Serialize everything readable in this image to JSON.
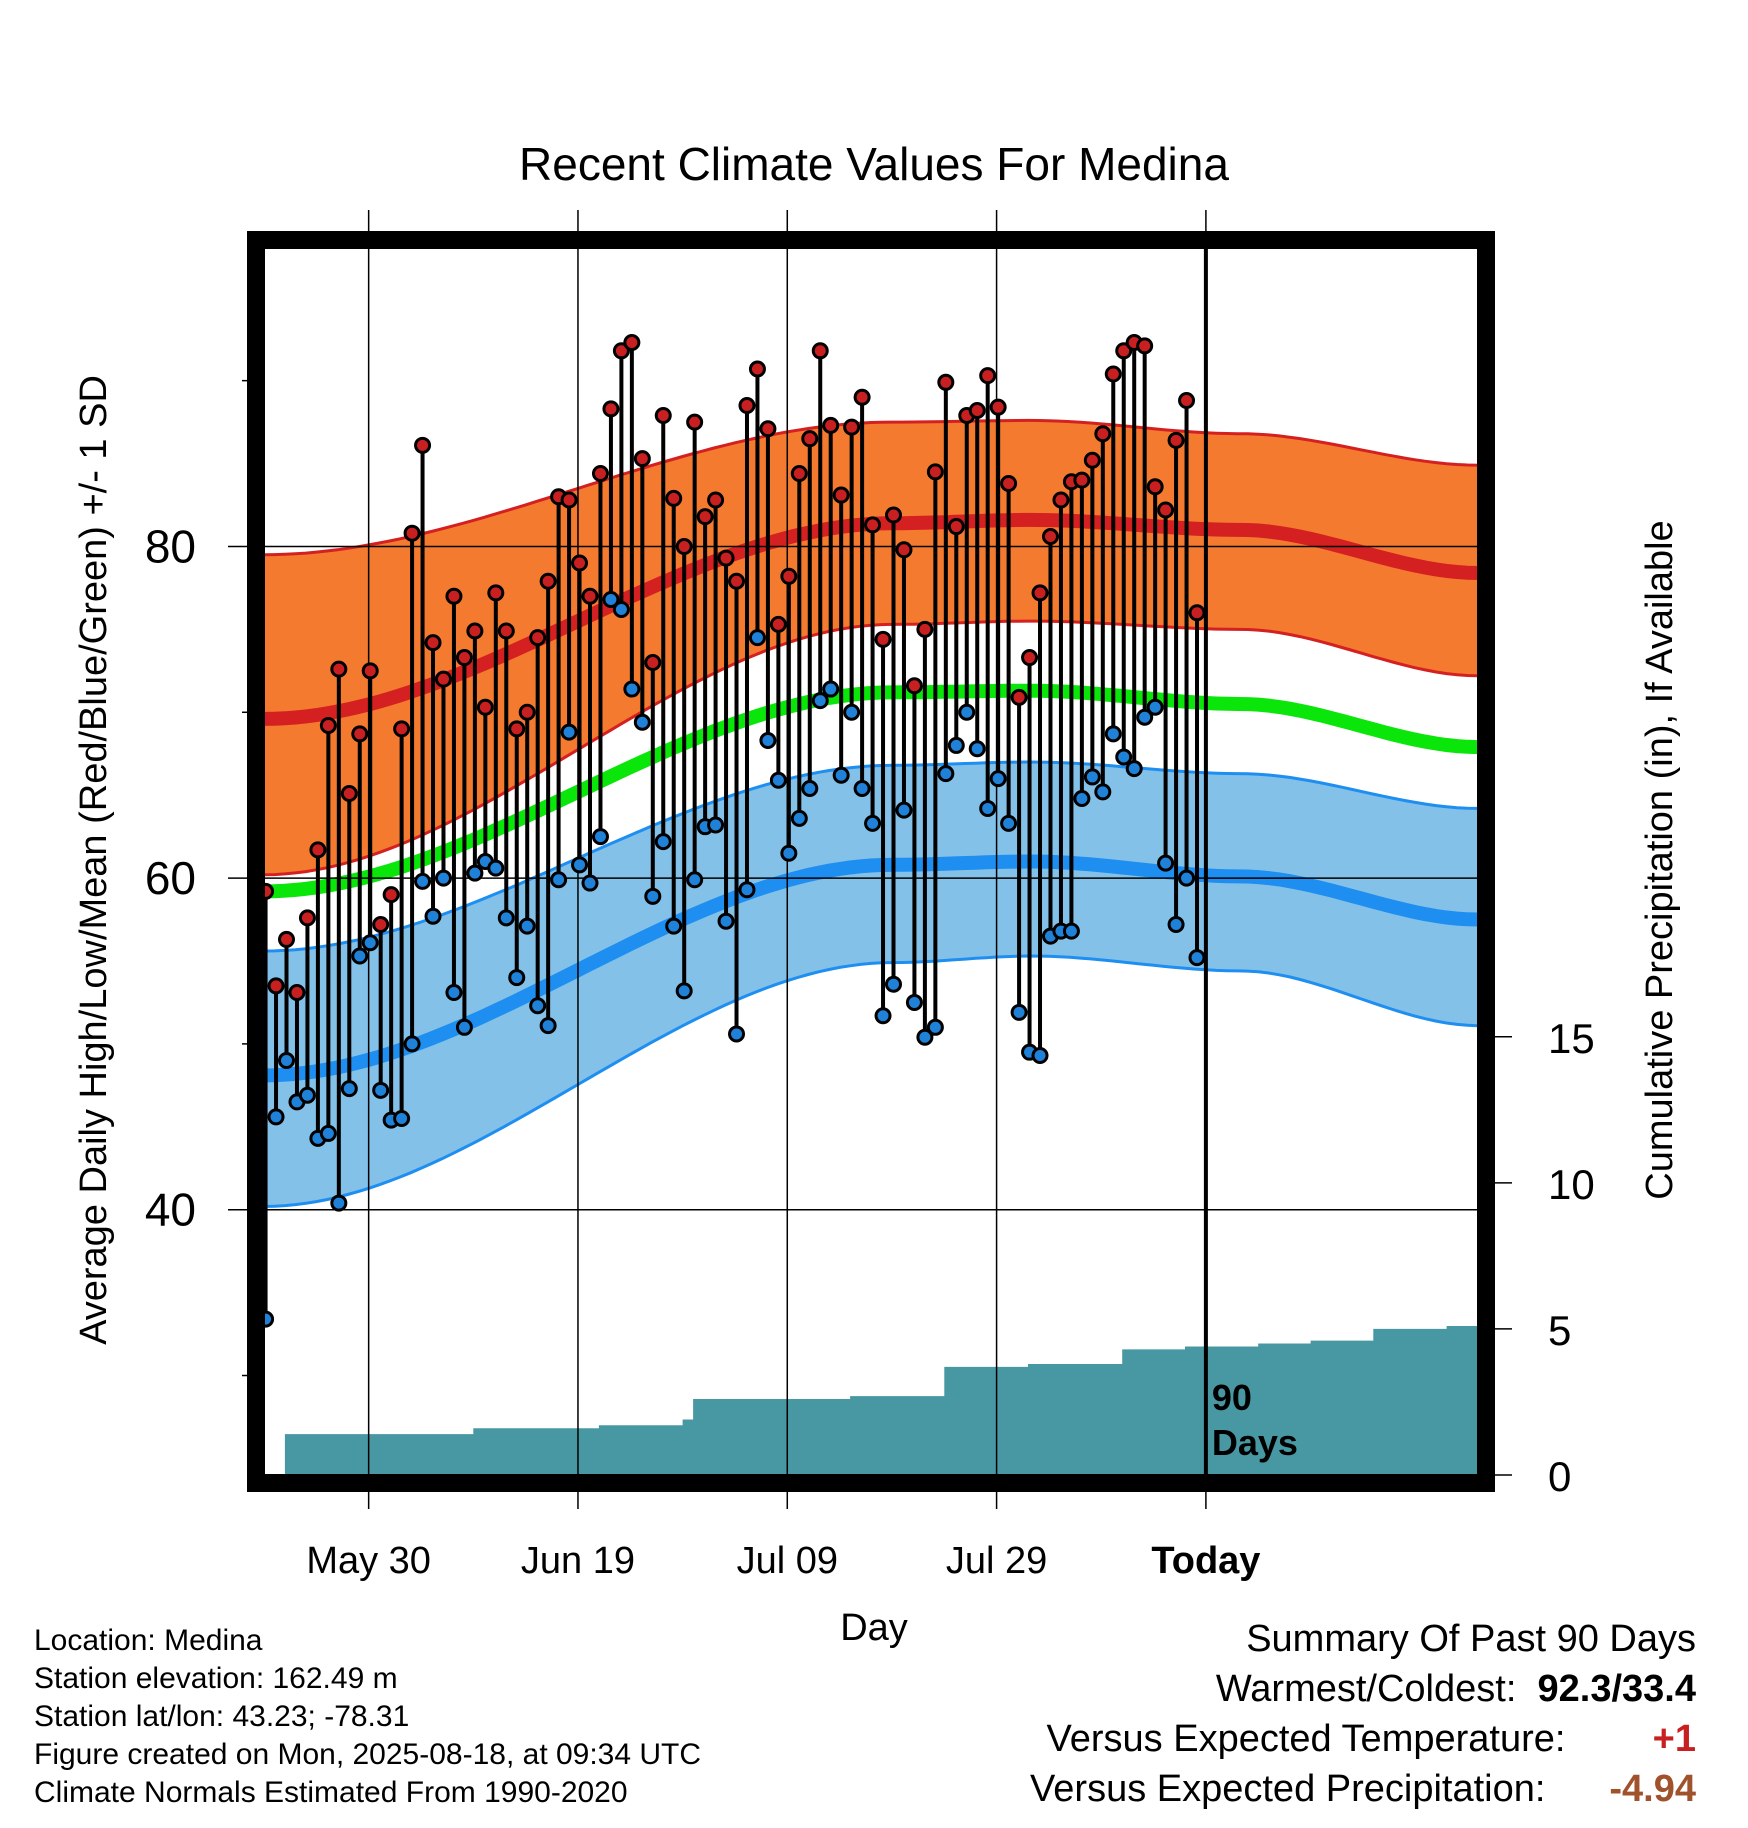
{
  "chart_data": {
    "type": "line",
    "title": "Recent Climate Values For Medina",
    "xlabel": "Day",
    "ylabel": "Average Daily High/Low/Mean (Red/Blue/Green) +/- 1 SD",
    "y2label": "Cumulative Precipitation (in), If Available",
    "x_tick_labels": [
      "May 30",
      "Jun 19",
      "Jul 09",
      "Jul 29",
      "Today"
    ],
    "y_ticks": [
      40,
      60,
      80
    ],
    "y2_ticks": [
      0,
      5,
      10,
      15
    ],
    "today_label": "90 Days",
    "ylim": [
      24,
      98
    ],
    "y2lim": [
      0,
      42
    ],
    "grid": true,
    "colors": {
      "high": "#d42020",
      "high_band": "#f47a30",
      "low": "#1e8ff0",
      "low_band": "#84c1e8",
      "mean": "#0ae60a",
      "precip": "#4898a4",
      "high_dot": "#c82020",
      "low_dot": "#1f82d8"
    },
    "series": [
      {
        "name": "Daily High",
        "values": [
          59.2,
          53.5,
          56.3,
          53.1,
          57.6,
          61.7,
          69.2,
          72.6,
          65.1,
          68.7,
          72.5,
          57.2,
          59.0,
          69.0,
          80.8,
          86.1,
          74.2,
          72.0,
          77.0,
          73.3,
          74.9,
          70.3,
          77.2,
          74.9,
          69.0,
          70.0,
          74.5,
          77.9,
          83.0,
          82.8,
          79.0,
          77.0,
          84.4,
          88.3,
          91.8,
          92.3,
          85.3,
          73.0,
          87.9,
          82.9,
          80.0,
          87.5,
          81.8,
          82.8,
          79.3,
          77.9,
          88.5,
          90.7,
          87.1,
          75.3,
          78.2,
          84.4,
          86.5,
          91.8,
          87.3,
          83.1,
          87.2,
          89.0,
          81.3,
          74.4,
          81.9,
          79.8,
          71.6,
          75.0,
          84.5,
          89.9,
          81.2,
          87.9,
          88.2,
          90.3,
          88.4,
          83.8,
          70.9,
          73.3,
          77.2,
          80.6,
          82.8,
          83.9,
          84.0,
          85.2,
          86.8,
          90.4,
          91.8,
          92.3,
          92.1,
          83.6,
          82.2,
          86.4,
          88.8,
          76.0
        ]
      },
      {
        "name": "Daily Low",
        "values": [
          33.4,
          45.6,
          49.0,
          46.5,
          46.9,
          44.3,
          44.6,
          40.4,
          47.3,
          55.3,
          56.1,
          47.2,
          45.4,
          45.5,
          50.0,
          59.8,
          57.7,
          60.0,
          53.1,
          51.0,
          60.3,
          61.0,
          60.6,
          57.6,
          54.0,
          57.1,
          52.3,
          51.1,
          59.9,
          68.8,
          60.8,
          59.7,
          62.5,
          76.8,
          76.2,
          71.4,
          69.4,
          58.9,
          62.2,
          57.1,
          53.2,
          59.9,
          63.1,
          63.2,
          57.4,
          50.6,
          59.3,
          74.5,
          68.3,
          65.9,
          61.5,
          63.6,
          65.4,
          70.7,
          71.4,
          66.2,
          70.0,
          65.4,
          63.3,
          51.7,
          53.6,
          64.1,
          52.5,
          50.4,
          51.0,
          66.3,
          68.0,
          70.0,
          67.8,
          64.2,
          66.0,
          63.3,
          51.9,
          49.5,
          49.3,
          56.5,
          56.8,
          56.8,
          64.8,
          66.1,
          65.2,
          68.7,
          67.3,
          66.6,
          69.7,
          70.3,
          60.9,
          57.2,
          60.0,
          55.2
        ]
      },
      {
        "name": "Normal High",
        "values": [
          69.6,
          81.4,
          81.6,
          81.0,
          78.4
        ]
      },
      {
        "name": "Normal High +1 SD",
        "values": [
          79.5,
          87.5,
          87.6,
          86.8,
          84.9
        ]
      },
      {
        "name": "Normal High -1 SD",
        "values": [
          60.2,
          75.3,
          75.5,
          75.0,
          72.2
        ]
      },
      {
        "name": "Normal Mean",
        "values": [
          59.2,
          71.2,
          71.3,
          70.5,
          67.9
        ]
      },
      {
        "name": "Normal Low",
        "values": [
          48.1,
          60.8,
          61.0,
          60.1,
          57.5
        ]
      },
      {
        "name": "Normal Low +1 SD",
        "values": [
          55.6,
          66.8,
          67.0,
          66.3,
          64.2
        ]
      },
      {
        "name": "Normal Low -1 SD",
        "values": [
          40.2,
          54.9,
          55.3,
          54.4,
          51.1
        ]
      },
      {
        "name": "Cumulative Precipitation",
        "values": [
          0.0,
          1.4,
          1.4,
          1.6,
          1.7,
          1.7,
          1.9,
          2.6,
          2.6,
          2.6,
          2.6,
          2.7,
          2.7,
          2.7,
          3.7,
          3.7,
          3.8,
          3.8,
          4.3,
          4.3,
          4.3,
          4.4,
          4.4,
          4.5,
          4.5,
          4.6,
          4.6,
          4.6,
          5.0,
          5.0,
          5.1
        ]
      }
    ],
    "normals_x_days": [
      0,
      45,
      55,
      70,
      87
    ],
    "precip_x_days": [
      0,
      2,
      16,
      20,
      32,
      38,
      40,
      41,
      43,
      49,
      55,
      56,
      60,
      63,
      65,
      72,
      73,
      75,
      82,
      84,
      86,
      88,
      92,
      95,
      98,
      100,
      102,
      105,
      106,
      110,
      113
    ],
    "x_tick_days": [
      10,
      30,
      50,
      70,
      90
    ],
    "today_day": 90
  },
  "info": {
    "location": "Location: Medina",
    "elevation": "Station elevation: 162.49 m",
    "latlon": "Station lat/lon: 43.23; -78.31",
    "created": "Figure created on Mon, 2025-08-18, at 09:34 UTC",
    "normals": "Climate Normals Estimated From 1990-2020"
  },
  "summary": {
    "title": "Summary Of Past 90 Days",
    "warm_cold_label": "Warmest/Coldest:",
    "warm_cold_value": "92.3/33.4",
    "temp_label": "Versus Expected Temperature:",
    "temp_value": "+1",
    "temp_color": "#c82020",
    "precip_label": "Versus Expected Precipitation:",
    "precip_value": "-4.94",
    "precip_color": "#a0522d"
  }
}
